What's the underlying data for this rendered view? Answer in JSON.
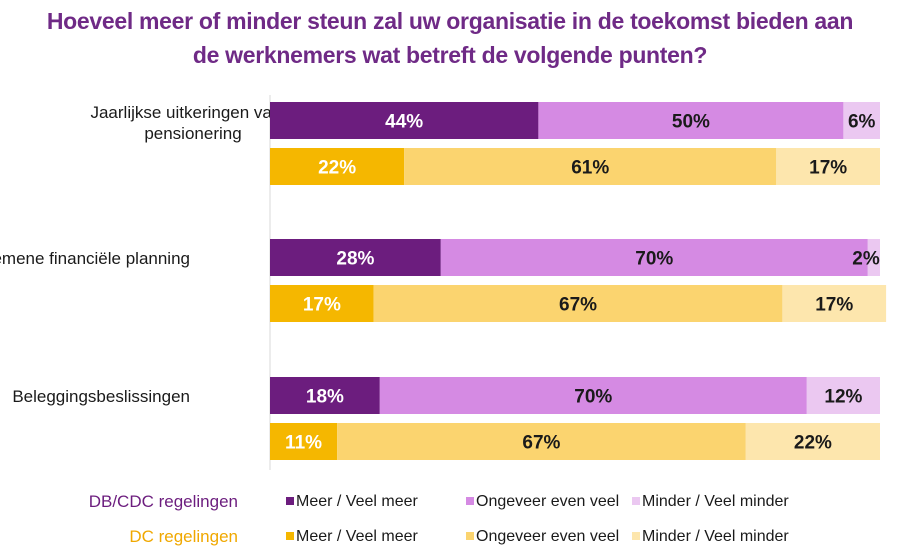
{
  "title_lines": [
    "Hoeveel meer of minder steun zal uw organisatie in de toekomst bieden aan",
    "de werknemers wat betreft de volgende punten?"
  ],
  "colors": {
    "title": "#6f2a86",
    "db_meer": "#6c1d7e",
    "db_ongeveer": "#d58ae3",
    "db_minder": "#ebc8f1",
    "dc_meer": "#f5b700",
    "dc_ongeveer": "#fbd46f",
    "dc_minder": "#fde6ad",
    "db_label": "#6c1d7e",
    "dc_label": "#f0a800"
  },
  "legend": {
    "rows": [
      {
        "group": "DB/CDC regelingen",
        "items": [
          "Meer / Veel meer",
          "Ongeveer even veel",
          "Minder / Veel minder"
        ]
      },
      {
        "group": "DC regelingen",
        "items": [
          "Meer / Veel meer",
          "Ongeveer even veel",
          "Minder / Veel minder"
        ]
      }
    ]
  },
  "chart_data": {
    "type": "bar",
    "orientation": "horizontal",
    "stacked": true,
    "xlim": [
      0,
      100
    ],
    "categories": [
      "Jaarlijkse uitkeringen vanaf\npensionering",
      "Algemene financiële planning",
      "Beleggingsbeslissingen"
    ],
    "groups": [
      "DB/CDC regelingen",
      "DC regelingen"
    ],
    "series": [
      {
        "name": "Meer / Veel meer",
        "values": {
          "DB/CDC regelingen": [
            44,
            28,
            18
          ],
          "DC regelingen": [
            22,
            17,
            11
          ]
        }
      },
      {
        "name": "Ongeveer even veel",
        "values": {
          "DB/CDC regelingen": [
            50,
            70,
            70
          ],
          "DC regelingen": [
            61,
            67,
            67
          ]
        }
      },
      {
        "name": "Minder / Veel minder",
        "values": {
          "DB/CDC regelingen": [
            6,
            2,
            12
          ],
          "DC regelingen": [
            17,
            17,
            22
          ]
        }
      }
    ],
    "value_suffix": "%"
  }
}
